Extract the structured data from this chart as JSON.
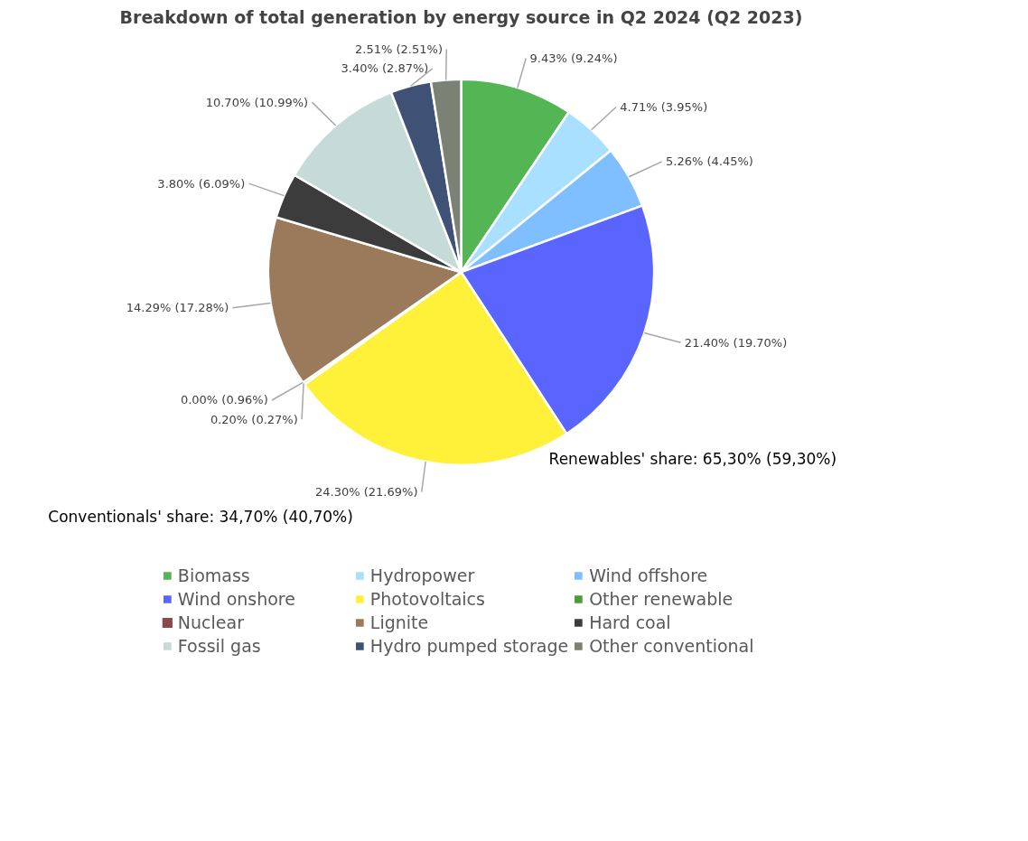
{
  "chart_data": {
    "type": "pie",
    "title": "Breakdown of total generation by energy source in Q2 2024 (Q2 2023)",
    "categories": [
      "Biomass",
      "Hydropower",
      "Wind offshore",
      "Wind onshore",
      "Photovoltaics",
      "Other renewable",
      "Nuclear",
      "Lignite",
      "Hard coal",
      "Fossil gas",
      "Hydro pumped storage",
      "Other conventional"
    ],
    "values": [
      9.43,
      4.71,
      5.26,
      21.4,
      24.3,
      0.2,
      0.0,
      14.29,
      3.8,
      10.7,
      3.4,
      2.51
    ],
    "value_labels": [
      "9.43% (9.24%)",
      "4.71% (3.95%)",
      "5.26% (4.45%)",
      "21.40% (19.70%)",
      "24.30% (21.69%)",
      "0.20% (0.27%)",
      "0.00% (0.96%)",
      "14.29% (17.28%)",
      "3.80% (6.09%)",
      "10.70% (10.99%)",
      "3.40% (2.87%)",
      "2.51% (2.51%)"
    ],
    "colors": [
      "#53b553",
      "#a9dfff",
      "#7fbfff",
      "#5a64ff",
      "#fff13a",
      "#4e9a3f",
      "#8b4a4a",
      "#9a7a5a",
      "#3c3c3c",
      "#c6dad8",
      "#3f5275",
      "#7b8275"
    ],
    "annotations": [
      "Renewables' share: 65,30% (59,30%)",
      "Conventionals' share: 34,70% (40,70%)"
    ],
    "legend": "bottom"
  }
}
